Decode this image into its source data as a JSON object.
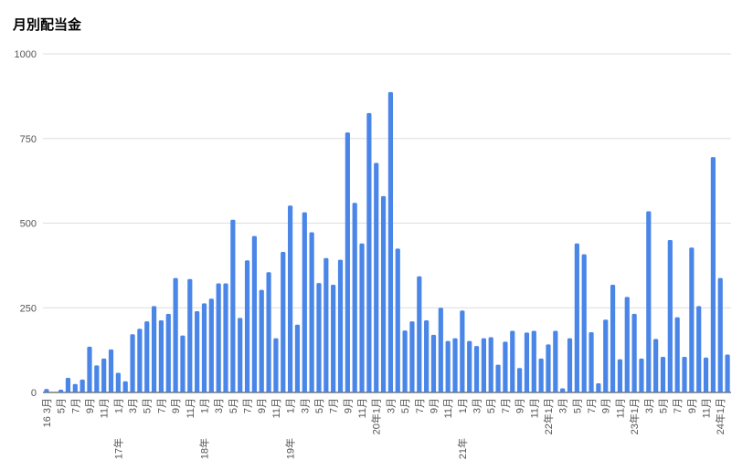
{
  "chart_data": {
    "type": "bar",
    "title": "月別配当金",
    "categories": [
      "16 3月",
      null,
      "5月",
      null,
      "7月",
      null,
      "9月",
      null,
      "11月",
      null,
      "1月",
      null,
      "3月",
      null,
      "5月",
      null,
      "7月",
      null,
      "9月",
      null,
      "11月",
      null,
      "1月",
      null,
      "3月",
      null,
      "5月",
      null,
      "7月",
      null,
      "9月",
      null,
      "11月",
      null,
      "1月",
      null,
      "3月",
      null,
      "5月",
      null,
      "7月",
      null,
      "9月",
      null,
      "11月",
      null,
      "20年1月",
      null,
      "3月",
      null,
      "5月",
      null,
      "7月",
      null,
      "9月",
      null,
      "11月",
      null,
      "1月",
      null,
      "3月",
      null,
      "5月",
      null,
      "7月",
      null,
      "9月",
      null,
      "11月",
      null,
      "22年1月",
      null,
      "3月",
      null,
      "5月",
      null,
      "7月",
      null,
      "9月",
      null,
      "11月",
      null,
      "23年1月",
      null,
      "3月",
      null,
      "5月",
      null,
      "7月",
      null,
      "9月",
      null,
      "11月",
      null,
      "24年1月",
      null
    ],
    "year_labels": [
      null,
      null,
      null,
      null,
      null,
      null,
      null,
      null,
      null,
      null,
      "17年",
      null,
      null,
      null,
      null,
      null,
      null,
      null,
      null,
      null,
      null,
      null,
      "18年",
      null,
      null,
      null,
      null,
      null,
      null,
      null,
      null,
      null,
      null,
      null,
      "19年",
      null,
      null,
      null,
      null,
      null,
      null,
      null,
      null,
      null,
      null,
      null,
      null,
      null,
      null,
      null,
      null,
      null,
      null,
      null,
      null,
      null,
      null,
      null,
      "21年",
      null,
      null,
      null,
      null,
      null,
      null,
      null,
      null,
      null,
      null,
      null,
      null,
      null,
      null,
      null,
      null,
      null,
      null,
      null,
      null,
      null,
      null,
      null,
      null,
      null,
      null,
      null,
      null,
      null,
      null,
      null,
      null,
      null,
      null,
      null,
      null,
      null
    ],
    "values": [
      10,
      0,
      8,
      43,
      25,
      38,
      135,
      80,
      100,
      127,
      58,
      33,
      172,
      188,
      210,
      255,
      213,
      232,
      338,
      168,
      335,
      240,
      263,
      277,
      322,
      322,
      510,
      220,
      390,
      462,
      303,
      355,
      160,
      415,
      552,
      200,
      532,
      473,
      323,
      397,
      318,
      392,
      768,
      560,
      440,
      825,
      678,
      580,
      887,
      425,
      183,
      210,
      343,
      213,
      170,
      250,
      152,
      160,
      242,
      152,
      137,
      160,
      163,
      82,
      150,
      182,
      72,
      177,
      182,
      100,
      142,
      182,
      12,
      160,
      440,
      408,
      178,
      27,
      215,
      318,
      98,
      282,
      232,
      100,
      535,
      158,
      105,
      450,
      222,
      105,
      428,
      255,
      103,
      695,
      338,
      112
    ],
    "color": "#4a86e8",
    "ylim": [
      0,
      1000
    ],
    "yticks": [
      0,
      250,
      500,
      750,
      1000
    ],
    "grid": true
  }
}
